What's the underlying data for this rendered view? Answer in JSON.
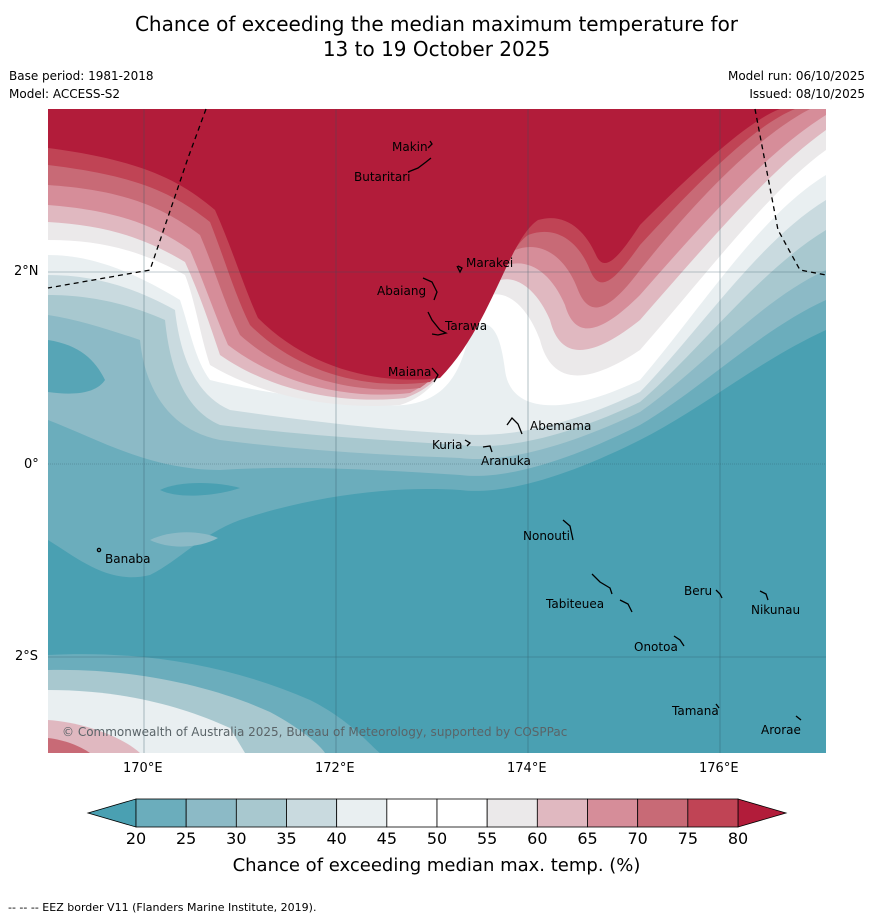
{
  "title_line1": "Chance of exceeding the median maximum temperature for",
  "title_line2": "13 to 19 October 2025",
  "base_period": "Base period: 1981-2018",
  "model": "Model: ACCESS-S2",
  "model_run": "Model run: 06/10/2025",
  "issued": "Issued: 08/10/2025",
  "copyright": "© Commonwealth of Australia 2025, Bureau of Meteorology, supported by COSPPac",
  "lat_ticks": [
    "2°N",
    "0°",
    "2°S"
  ],
  "lon_ticks": [
    "170°E",
    "172°E",
    "174°E",
    "176°E"
  ],
  "islands": [
    "Makin",
    "Butaritari",
    "Marakei",
    "Abaiang",
    "Tarawa",
    "Maiana",
    "Abemama",
    "Kuria",
    "Aranuka",
    "Banaba",
    "Nonouti",
    "Tabiteuea",
    "Beru",
    "Nikunau",
    "Onotoa",
    "Tamana",
    "Arorae"
  ],
  "colorbar": {
    "labels": [
      "20",
      "25",
      "30",
      "35",
      "40",
      "45",
      "50",
      "55",
      "60",
      "65",
      "70",
      "75",
      "80"
    ],
    "colors": [
      "#4aa0b2",
      "#6badbc",
      "#8cbac6",
      "#a8c8cf",
      "#c9dadf",
      "#e9eff1",
      "#ffffff",
      "#ffffff",
      "#ebe9ea",
      "#e0b8c0",
      "#d68d99",
      "#c86a76",
      "#c04455",
      "#b21c3a"
    ],
    "title": "Chance of exceeding median max. temp. (%)"
  },
  "footnote": "--  --  -- EEZ border V11 (Flanders Marine Institute, 2019)."
}
